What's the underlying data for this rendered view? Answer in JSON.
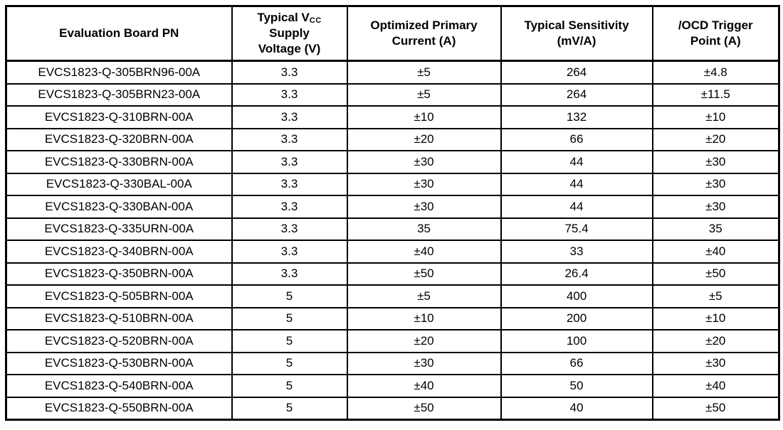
{
  "table": {
    "headers": {
      "col1": "Evaluation Board PN",
      "col2_line1_pre": "Typical V",
      "col2_line1_sub": "CC",
      "col2_line2": "Supply",
      "col2_line3": "Voltage (V)",
      "col3_line1": "Optimized Primary",
      "col3_line2": "Current (A)",
      "col4_line1": "Typical Sensitivity",
      "col4_line2": "(mV/A)",
      "col5_line1": "/OCD Trigger",
      "col5_line2": "Point (A)"
    },
    "rows": [
      {
        "pn": "EVCS1823-Q-305BRN96-00A",
        "vcc": "3.3",
        "current": "±5",
        "sensitivity": "264",
        "ocd": "±4.8"
      },
      {
        "pn": "EVCS1823-Q-305BRN23-00A",
        "vcc": "3.3",
        "current": "±5",
        "sensitivity": "264",
        "ocd": "±11.5"
      },
      {
        "pn": "EVCS1823-Q-310BRN-00A",
        "vcc": "3.3",
        "current": "±10",
        "sensitivity": "132",
        "ocd": "±10"
      },
      {
        "pn": "EVCS1823-Q-320BRN-00A",
        "vcc": "3.3",
        "current": "±20",
        "sensitivity": "66",
        "ocd": "±20"
      },
      {
        "pn": "EVCS1823-Q-330BRN-00A",
        "vcc": "3.3",
        "current": "±30",
        "sensitivity": "44",
        "ocd": "±30"
      },
      {
        "pn": "EVCS1823-Q-330BAL-00A",
        "vcc": "3.3",
        "current": "±30",
        "sensitivity": "44",
        "ocd": "±30"
      },
      {
        "pn": "EVCS1823-Q-330BAN-00A",
        "vcc": "3.3",
        "current": "±30",
        "sensitivity": "44",
        "ocd": "±30"
      },
      {
        "pn": "EVCS1823-Q-335URN-00A",
        "vcc": "3.3",
        "current": "35",
        "sensitivity": "75.4",
        "ocd": "35"
      },
      {
        "pn": "EVCS1823-Q-340BRN-00A",
        "vcc": "3.3",
        "current": "±40",
        "sensitivity": "33",
        "ocd": "±40"
      },
      {
        "pn": "EVCS1823-Q-350BRN-00A",
        "vcc": "3.3",
        "current": "±50",
        "sensitivity": "26.4",
        "ocd": "±50"
      },
      {
        "pn": "EVCS1823-Q-505BRN-00A",
        "vcc": "5",
        "current": "±5",
        "sensitivity": "400",
        "ocd": "±5"
      },
      {
        "pn": "EVCS1823-Q-510BRN-00A",
        "vcc": "5",
        "current": "±10",
        "sensitivity": "200",
        "ocd": "±10"
      },
      {
        "pn": "EVCS1823-Q-520BRN-00A",
        "vcc": "5",
        "current": "±20",
        "sensitivity": "100",
        "ocd": "±20"
      },
      {
        "pn": "EVCS1823-Q-530BRN-00A",
        "vcc": "5",
        "current": "±30",
        "sensitivity": "66",
        "ocd": "±30"
      },
      {
        "pn": "EVCS1823-Q-540BRN-00A",
        "vcc": "5",
        "current": "±40",
        "sensitivity": "50",
        "ocd": "±40"
      },
      {
        "pn": "EVCS1823-Q-550BRN-00A",
        "vcc": "5",
        "current": "±50",
        "sensitivity": "40",
        "ocd": "±50"
      }
    ]
  },
  "colors": {
    "border": "#000000",
    "text": "#000000",
    "background": "#ffffff"
  }
}
